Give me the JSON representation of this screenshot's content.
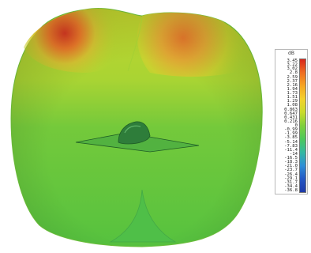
{
  "legend": {
    "unit": "dB",
    "ticks": [
      "3.45",
      "3.22",
      "3.02",
      "2.8",
      "2.59",
      "2.37",
      "2.16",
      "1.94",
      "1.73",
      "1.51",
      "1.29",
      "1.08",
      "0.863",
      "0.647",
      "0.431",
      "0.216",
      "0",
      "-0.99",
      "-1.99",
      "-3.85",
      "-5.14",
      "-7.83",
      "-11.4",
      "-14",
      "-16.5",
      "-18.3",
      "-21.0",
      "-23.7",
      "-26.4",
      "-29.1",
      "-31.7",
      "-34.4",
      "-36.8"
    ],
    "colors": [
      "#d7261b",
      "#ee6c22",
      "#f5a623",
      "#f3d22c",
      "#c9db2c",
      "#7fcf3c",
      "#4cc85a",
      "#34b8a0",
      "#2f8fd6",
      "#2458c4",
      "#1e3aa8"
    ]
  },
  "colors": {
    "pattern_low": "#55c23e",
    "pattern_mid": "#b9d62f",
    "pattern_high": "#d93a22",
    "ground_plane": "#3aa043",
    "antenna": "#2e7d3a"
  }
}
